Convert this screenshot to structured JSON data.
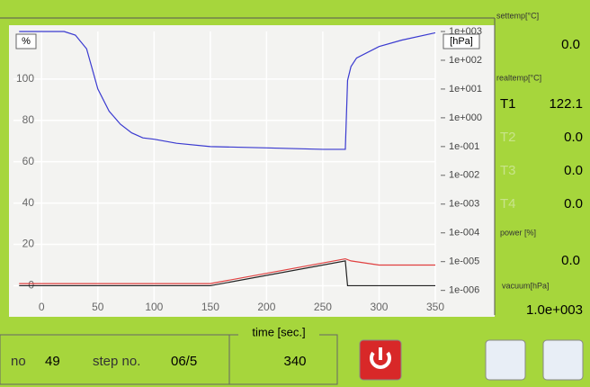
{
  "chart_data": {
    "type": "line",
    "y_label": "%",
    "y2_label": "[hPa]",
    "x_label": "time [sec.]",
    "xlim": [
      -25,
      350
    ],
    "xticks": [
      0,
      50,
      100,
      150,
      200,
      250,
      300,
      350
    ],
    "ylim": [
      -12,
      123
    ],
    "yticks": [
      0,
      20,
      40,
      60,
      80,
      100
    ],
    "y2lim": [
      2e-07,
      1000
    ],
    "y2_log": true,
    "y2ticks": [
      {
        "value": 1000,
        "label": "1e+003"
      },
      {
        "value": 100,
        "label": "1e+002"
      },
      {
        "value": 10,
        "label": "1e+001"
      },
      {
        "value": 1,
        "label": "1e+000"
      },
      {
        "value": 0.1,
        "label": "1e-001"
      },
      {
        "value": 0.01,
        "label": "1e-002"
      },
      {
        "value": 0.001,
        "label": "1e-003"
      },
      {
        "value": 0.0001,
        "label": "1e-004"
      },
      {
        "value": 1e-05,
        "label": "1e-005"
      },
      {
        "value": 1e-06,
        "label": "1e-006"
      }
    ],
    "grid": true,
    "series": [
      {
        "color": "#3a3ad0",
        "axis": "y2",
        "x": [
          -20,
          0,
          20,
          30,
          40,
          50,
          60,
          70,
          80,
          90,
          100,
          120,
          150,
          200,
          250,
          270,
          272,
          275,
          280,
          300,
          320,
          350
        ],
        "values": [
          1000,
          1000,
          1000,
          750,
          250,
          10,
          1.7,
          0.6,
          0.3,
          0.2,
          0.18,
          0.13,
          0.1,
          0.09,
          0.08,
          0.08,
          20,
          60,
          120,
          300,
          500,
          900
        ]
      },
      {
        "color": "#e04040",
        "x": [
          -20,
          150,
          200,
          250,
          270,
          275,
          300,
          350
        ],
        "values": [
          1,
          1,
          6,
          11,
          13,
          12,
          10,
          10
        ]
      },
      {
        "color": "#222222",
        "x": [
          -20,
          150,
          270,
          272,
          350
        ],
        "values": [
          0,
          0,
          12,
          0,
          0
        ]
      }
    ]
  },
  "side": {
    "settemp_label": "settemp[°C]",
    "settemp": "0.0",
    "realtemp_label": "realtemp[°C]",
    "temps": [
      [
        "T1",
        "122.1"
      ],
      [
        "T2",
        "0.0"
      ],
      [
        "T3",
        "0.0"
      ],
      [
        "T4",
        "0.0"
      ]
    ],
    "power_label": "power [%]",
    "power": "0.0",
    "vacuum_label": "vacuum[hPa]",
    "vacuum": "1.0e+003"
  },
  "bottom": {
    "run_label": "no",
    "run": "49",
    "step_label": "step no.",
    "step": "06/5",
    "time": "340"
  }
}
